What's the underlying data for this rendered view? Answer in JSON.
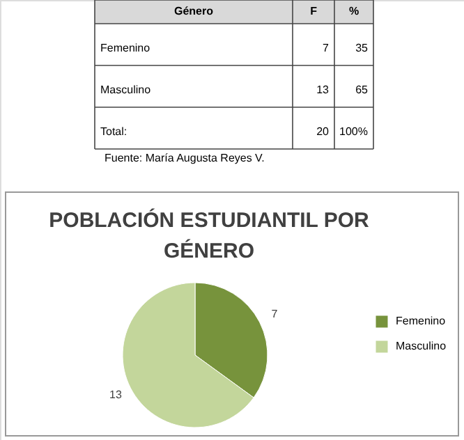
{
  "chart_data": {
    "type": "pie",
    "title": "POBLACIÓN ESTUDIANTIL POR GÉNERO",
    "categories": [
      "Femenino",
      "Masculino"
    ],
    "values": [
      7,
      13
    ],
    "colors": [
      "#77933c",
      "#c3d69b"
    ],
    "data_labels": true,
    "legend": "right",
    "annotations": [
      "Género",
      "F",
      "%",
      "Femenino",
      "7",
      "35",
      "Masculino",
      "13",
      "65",
      "Total:",
      "20",
      "100%",
      "Fuente: María Augusta Reyes V."
    ]
  }
}
